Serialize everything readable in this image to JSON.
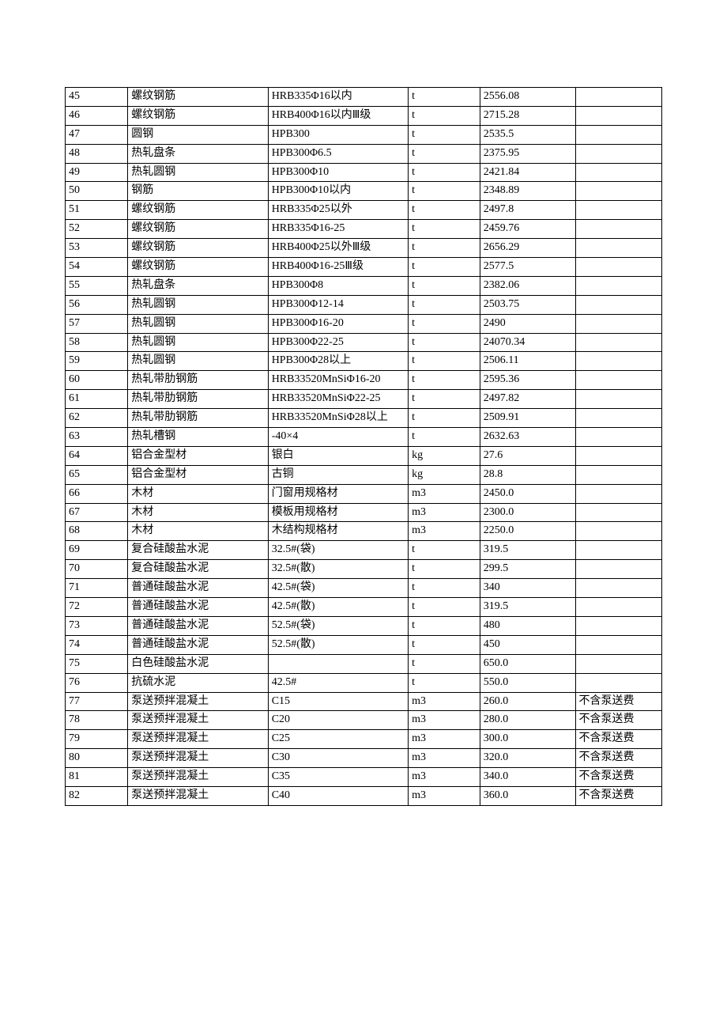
{
  "table": {
    "columns": [
      {
        "key": "idx",
        "widthClass": "c0"
      },
      {
        "key": "name",
        "widthClass": "c1"
      },
      {
        "key": "spec",
        "widthClass": "c2"
      },
      {
        "key": "unit",
        "widthClass": "c3"
      },
      {
        "key": "price",
        "widthClass": "c4"
      },
      {
        "key": "note",
        "widthClass": "c5"
      }
    ],
    "rows": [
      {
        "idx": "45",
        "name": "螺纹钢筋",
        "spec": "HRB335Φ16以内",
        "unit": "t",
        "price": "2556.08",
        "note": ""
      },
      {
        "idx": "46",
        "name": "螺纹钢筋",
        "spec": "HRB400Φ16以内Ⅲ级",
        "unit": "t",
        "price": "2715.28",
        "note": ""
      },
      {
        "idx": "47",
        "name": "圆钢",
        "spec": "HPB300",
        "unit": "t",
        "price": "2535.5",
        "note": ""
      },
      {
        "idx": "48",
        "name": "热轧盘条",
        "spec": "HPB300Φ6.5",
        "unit": "t",
        "price": "2375.95",
        "note": ""
      },
      {
        "idx": "49",
        "name": "热轧圆钢",
        "spec": "HPB300Φ10",
        "unit": "t",
        "price": "2421.84",
        "note": ""
      },
      {
        "idx": "50",
        "name": "钢筋",
        "spec": "HPB300Φ10以内",
        "unit": "t",
        "price": "2348.89",
        "note": ""
      },
      {
        "idx": "51",
        "name": "螺纹钢筋",
        "spec": "HRB335Φ25以外",
        "unit": "t",
        "price": "2497.8",
        "note": ""
      },
      {
        "idx": "52",
        "name": "螺纹钢筋",
        "spec": "HRB335Φ16-25",
        "unit": "t",
        "price": "2459.76",
        "note": ""
      },
      {
        "idx": "53",
        "name": "螺纹钢筋",
        "spec": "HRB400Φ25以外Ⅲ级",
        "unit": "t",
        "price": "2656.29",
        "note": ""
      },
      {
        "idx": "54",
        "name": "螺纹钢筋",
        "spec": "HRB400Φ16-25Ⅲ级",
        "unit": "t",
        "price": "2577.5",
        "note": ""
      },
      {
        "idx": "55",
        "name": "热轧盘条",
        "spec": "HPB300Φ8",
        "unit": "t",
        "price": "2382.06",
        "note": ""
      },
      {
        "idx": "56",
        "name": "热轧圆钢",
        "spec": "HPB300Φ12-14",
        "unit": "t",
        "price": "2503.75",
        "note": ""
      },
      {
        "idx": "57",
        "name": "热轧圆钢",
        "spec": "HPB300Φ16-20",
        "unit": "t",
        "price": "2490",
        "note": ""
      },
      {
        "idx": "58",
        "name": "热轧圆钢",
        "spec": "HPB300Φ22-25",
        "unit": "t",
        "price": "24070.34",
        "note": ""
      },
      {
        "idx": "59",
        "name": "热轧圆钢",
        "spec": "HPB300Φ28以上",
        "unit": "t",
        "price": "2506.11",
        "note": ""
      },
      {
        "idx": "60",
        "name": "热轧带肋钢筋",
        "spec": "HRB33520MnSiΦ16-20",
        "unit": "t",
        "price": "2595.36",
        "note": ""
      },
      {
        "idx": "61",
        "name": "热轧带肋钢筋",
        "spec": "HRB33520MnSiΦ22-25",
        "unit": "t",
        "price": "2497.82",
        "note": ""
      },
      {
        "idx": "62",
        "name": "热轧带肋钢筋",
        "spec": "HRB33520MnSiΦ28以上",
        "unit": "t",
        "price": "2509.91",
        "note": ""
      },
      {
        "idx": "63",
        "name": "热轧槽钢",
        "spec": "-40×4",
        "unit": "t",
        "price": "2632.63",
        "note": ""
      },
      {
        "idx": "64",
        "name": "铝合金型材",
        "spec": "银白",
        "unit": "kg",
        "price": "27.6",
        "note": ""
      },
      {
        "idx": "65",
        "name": "铝合金型材",
        "spec": "古铜",
        "unit": "kg",
        "price": "28.8",
        "note": ""
      },
      {
        "idx": "66",
        "name": "木材",
        "spec": "门窗用规格材",
        "unit": "m3",
        "price": "2450.0",
        "note": ""
      },
      {
        "idx": "67",
        "name": "木材",
        "spec": "模板用规格材",
        "unit": "m3",
        "price": "2300.0",
        "note": ""
      },
      {
        "idx": "68",
        "name": "木材",
        "spec": "木结构规格材",
        "unit": "m3",
        "price": "2250.0",
        "note": ""
      },
      {
        "idx": "69",
        "name": "复合硅酸盐水泥",
        "spec": "32.5#(袋)",
        "unit": "t",
        "price": "319.5",
        "note": ""
      },
      {
        "idx": "70",
        "name": "复合硅酸盐水泥",
        "spec": "32.5#(散)",
        "unit": "t",
        "price": "299.5",
        "note": ""
      },
      {
        "idx": "71",
        "name": "普通硅酸盐水泥",
        "spec": "42.5#(袋)",
        "unit": "t",
        "price": "340",
        "note": ""
      },
      {
        "idx": "72",
        "name": "普通硅酸盐水泥",
        "spec": "42.5#(散)",
        "unit": "t",
        "price": "319.5",
        "note": ""
      },
      {
        "idx": "73",
        "name": "普通硅酸盐水泥",
        "spec": "52.5#(袋)",
        "unit": "t",
        "price": "480",
        "note": ""
      },
      {
        "idx": "74",
        "name": "普通硅酸盐水泥",
        "spec": "52.5#(散)",
        "unit": "t",
        "price": "450",
        "note": ""
      },
      {
        "idx": "75",
        "name": "白色硅酸盐水泥",
        "spec": "",
        "unit": "t",
        "price": "650.0",
        "note": ""
      },
      {
        "idx": "76",
        "name": "抗硫水泥",
        "spec": "42.5#",
        "unit": "t",
        "price": "550.0",
        "note": ""
      },
      {
        "idx": "77",
        "name": "泵送预拌混凝土",
        "spec": "C15",
        "unit": "m3",
        "price": "260.0",
        "note": "不含泵送费"
      },
      {
        "idx": "78",
        "name": "泵送预拌混凝土",
        "spec": "C20",
        "unit": "m3",
        "price": "280.0",
        "note": "不含泵送费"
      },
      {
        "idx": "79",
        "name": "泵送预拌混凝土",
        "spec": "C25",
        "unit": "m3",
        "price": "300.0",
        "note": "不含泵送费"
      },
      {
        "idx": "80",
        "name": "泵送预拌混凝土",
        "spec": "C30",
        "unit": "m3",
        "price": "320.0",
        "note": "不含泵送费"
      },
      {
        "idx": "81",
        "name": "泵送预拌混凝土",
        "spec": "C35",
        "unit": "m3",
        "price": "340.0",
        "note": "不含泵送费"
      },
      {
        "idx": "82",
        "name": "泵送预拌混凝土",
        "spec": "C40",
        "unit": "m3",
        "price": "360.0",
        "note": "不含泵送费"
      }
    ]
  }
}
